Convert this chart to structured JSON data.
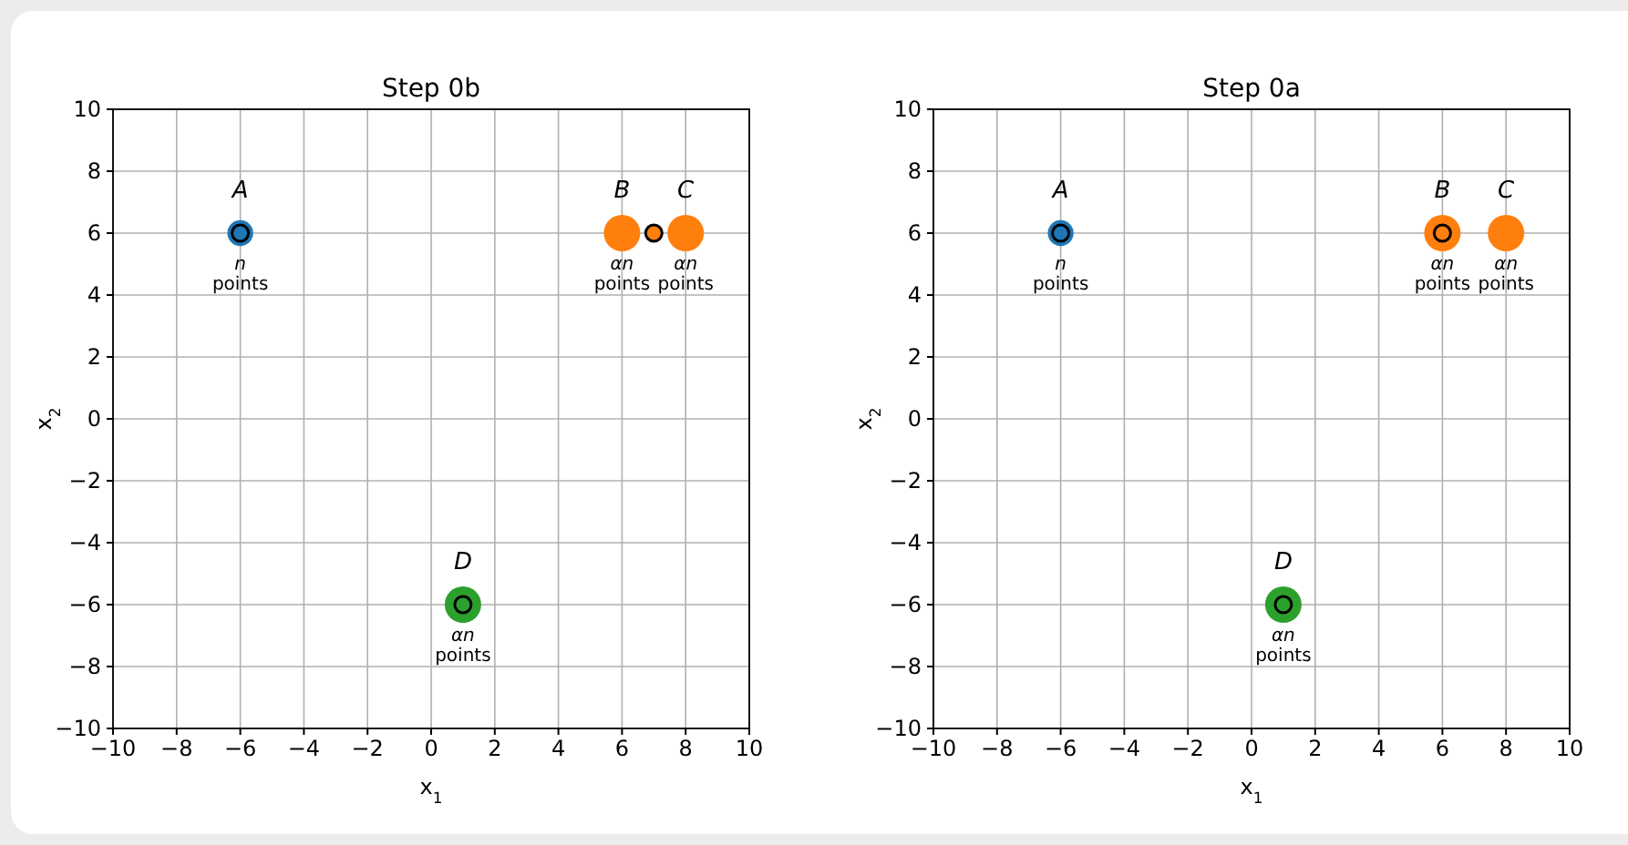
{
  "chart_data": [
    {
      "type": "bubble",
      "title": "Step 0b",
      "xlabel": "x$_{1}$",
      "ylabel": "x$_{2}$",
      "xlim": [
        -10,
        10
      ],
      "ylim": [
        -10,
        10
      ],
      "xticks": [
        {
          "value": -10,
          "label": "−10"
        },
        {
          "value": -8,
          "label": "−8"
        },
        {
          "value": -6,
          "label": "−6"
        },
        {
          "value": -4,
          "label": "−4"
        },
        {
          "value": -2,
          "label": "−2"
        },
        0,
        2,
        4,
        6,
        8,
        10
      ],
      "yticks": [
        {
          "value": -10,
          "label": "−10"
        },
        {
          "value": -8,
          "label": "−8"
        },
        {
          "value": -6,
          "label": "−6"
        },
        {
          "value": -4,
          "label": "−4"
        },
        {
          "value": -2,
          "label": "−2"
        },
        0,
        2,
        4,
        6,
        8,
        10
      ],
      "grid": true,
      "series": [
        {
          "color": "#1f77b4",
          "x": [
            -6
          ],
          "values": [
            6
          ],
          "sizes": [
            0.5
          ]
        },
        {
          "color": "#ff7f0e",
          "x": [
            6,
            8
          ],
          "values": [
            6,
            6
          ],
          "sizes": [
            1,
            1
          ]
        },
        {
          "color": "#2ca02c",
          "x": [
            1
          ],
          "values": [
            -6
          ],
          "sizes": [
            1
          ]
        },
        {
          "type": "scatter",
          "colors": [
            "#1f77b4",
            "#ff7f0e",
            "#2ca02c"
          ],
          "x": [
            -6,
            7,
            1
          ],
          "values": [
            6,
            6,
            -6
          ]
        }
      ],
      "annotations": [
        {
          "text": "A",
          "x": -6,
          "y": 6
        },
        {
          "text": "n\npoints",
          "x": -6,
          "y": 6
        },
        {
          "text": "B",
          "x": 6,
          "y": 6
        },
        {
          "text": "αn\npoints",
          "x": 6,
          "y": 6
        },
        {
          "text": "C",
          "x": 8,
          "y": 6
        },
        {
          "text": "αn\npoints",
          "x": 8,
          "y": 6
        },
        {
          "text": "D",
          "x": 1,
          "y": -6
        },
        {
          "text": "αn\npoints",
          "x": 1,
          "y": -6
        }
      ]
    },
    {
      "type": "bubble",
      "title": "Step 0a",
      "xlabel": "x$_{1}$",
      "ylabel": "x$_{2}$",
      "xlim": [
        -10,
        10
      ],
      "ylim": [
        -10,
        10
      ],
      "xticks": [
        {
          "value": -10,
          "label": "−10"
        },
        {
          "value": -8,
          "label": "−8"
        },
        {
          "value": -6,
          "label": "−6"
        },
        {
          "value": -4,
          "label": "−4"
        },
        {
          "value": -2,
          "label": "−2"
        },
        0,
        2,
        4,
        6,
        8,
        10
      ],
      "yticks": [
        {
          "value": -10,
          "label": "−10"
        },
        {
          "value": -8,
          "label": "−8"
        },
        {
          "value": -6,
          "label": "−6"
        },
        {
          "value": -4,
          "label": "−4"
        },
        {
          "value": -2,
          "label": "−2"
        },
        0,
        2,
        4,
        6,
        8,
        10
      ],
      "grid": true,
      "series": [
        {
          "color": "#1f77b4",
          "x": [
            -6
          ],
          "values": [
            6
          ],
          "sizes": [
            0.5
          ]
        },
        {
          "color": "#ff7f0e",
          "x": [
            6,
            8
          ],
          "values": [
            6,
            6
          ],
          "sizes": [
            1,
            1
          ]
        },
        {
          "color": "#2ca02c",
          "x": [
            1
          ],
          "values": [
            -6
          ],
          "sizes": [
            1
          ]
        },
        {
          "type": "scatter",
          "colors": [
            "#1f77b4",
            "#ff7f0e",
            "#2ca02c"
          ],
          "x": [
            -6,
            6,
            1
          ],
          "values": [
            6,
            6,
            -6
          ]
        }
      ],
      "annotations": [
        {
          "text": "A",
          "x": -6,
          "y": 6
        },
        {
          "text": "n\npoints",
          "x": -6,
          "y": 6
        },
        {
          "text": "B",
          "x": 6,
          "y": 6
        },
        {
          "text": "αn\npoints",
          "x": 6,
          "y": 6
        },
        {
          "text": "C",
          "x": 8,
          "y": 6
        },
        {
          "text": "αn\npoints",
          "x": 8,
          "y": 6
        },
        {
          "text": "D",
          "x": 1,
          "y": -6
        },
        {
          "text": "αn\npoints",
          "x": 1,
          "y": -6
        }
      ]
    }
  ]
}
